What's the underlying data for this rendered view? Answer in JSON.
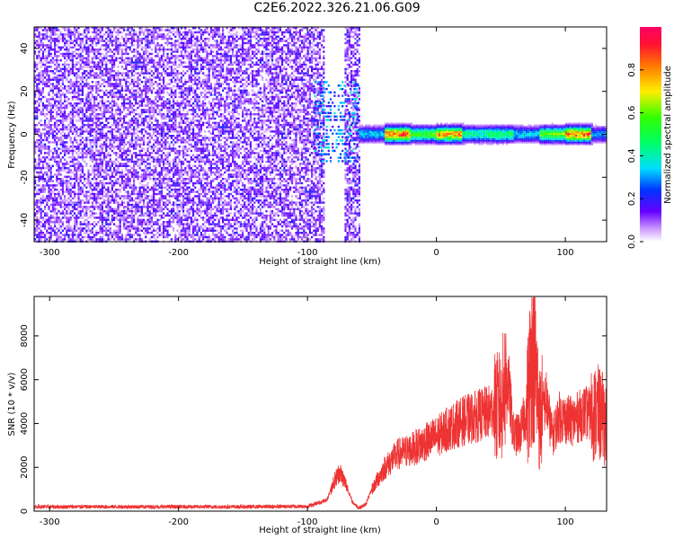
{
  "title": "C2E6.2022.326.21.06.G09",
  "colors": {
    "snr_line": "#ee3333",
    "axis": "#000000"
  },
  "chart_data": [
    {
      "type": "heatmap",
      "xlabel": "Height of straight line (km)",
      "ylabel": "Frequency (Hz)",
      "xlim": [
        -312,
        132
      ],
      "ylim": [
        -50,
        50
      ],
      "xticks": [
        -300,
        -200,
        -100,
        0,
        100
      ],
      "yticks": [
        -40,
        -20,
        0,
        20,
        40
      ],
      "grid": false,
      "colorbar": {
        "label": "Normalized spectral amplitude",
        "ticks": [
          0.0,
          0.2,
          0.4,
          0.6,
          0.8
        ],
        "range": [
          0,
          1
        ]
      },
      "noise_region_x": [
        -312,
        -60
      ],
      "signal_band_center_hz": 0,
      "signal_segments": [
        {
          "x": [
            -60,
            -40
          ],
          "amplitude": 0.35
        },
        {
          "x": [
            -40,
            -20
          ],
          "amplitude": 0.85
        },
        {
          "x": [
            -20,
            0
          ],
          "amplitude": 0.55
        },
        {
          "x": [
            0,
            20
          ],
          "amplitude": 0.8
        },
        {
          "x": [
            20,
            40
          ],
          "amplitude": 0.45
        },
        {
          "x": [
            40,
            60
          ],
          "amplitude": 0.5
        },
        {
          "x": [
            60,
            80
          ],
          "amplitude": 0.35
        },
        {
          "x": [
            80,
            100
          ],
          "amplitude": 0.6
        },
        {
          "x": [
            100,
            120
          ],
          "amplitude": 0.85
        },
        {
          "x": [
            120,
            132
          ],
          "amplitude": 0.3
        }
      ]
    },
    {
      "type": "line",
      "xlabel": "Height of straight line (km)",
      "ylabel": "SNR (10 * v/v)",
      "xlim": [
        -312,
        132
      ],
      "ylim": [
        0,
        9800
      ],
      "xticks": [
        -300,
        -200,
        -100,
        0,
        100
      ],
      "yticks": [
        0,
        2000,
        4000,
        6000,
        8000
      ],
      "grid": false,
      "series": [
        {
          "x": [
            -312,
            -250,
            -150,
            -100,
            -85,
            -80,
            -75,
            -70,
            -65,
            -60,
            -55,
            -50,
            -40,
            -30,
            -20,
            -10,
            0,
            10,
            20,
            30,
            40,
            50,
            55,
            60,
            65,
            70,
            75,
            80,
            85,
            90,
            95,
            100,
            105,
            110,
            115,
            120,
            125,
            130,
            132
          ],
          "values": [
            200,
            200,
            200,
            220,
            500,
            1300,
            1800,
            1200,
            400,
            150,
            300,
            1000,
            2000,
            2600,
            2800,
            3100,
            3400,
            3800,
            4100,
            4300,
            4500,
            4800,
            6300,
            3400,
            3600,
            4600,
            7800,
            4200,
            5100,
            3400,
            4300,
            4200,
            4100,
            4300,
            4500,
            4400,
            4500,
            4200,
            3800
          ]
        }
      ]
    }
  ]
}
